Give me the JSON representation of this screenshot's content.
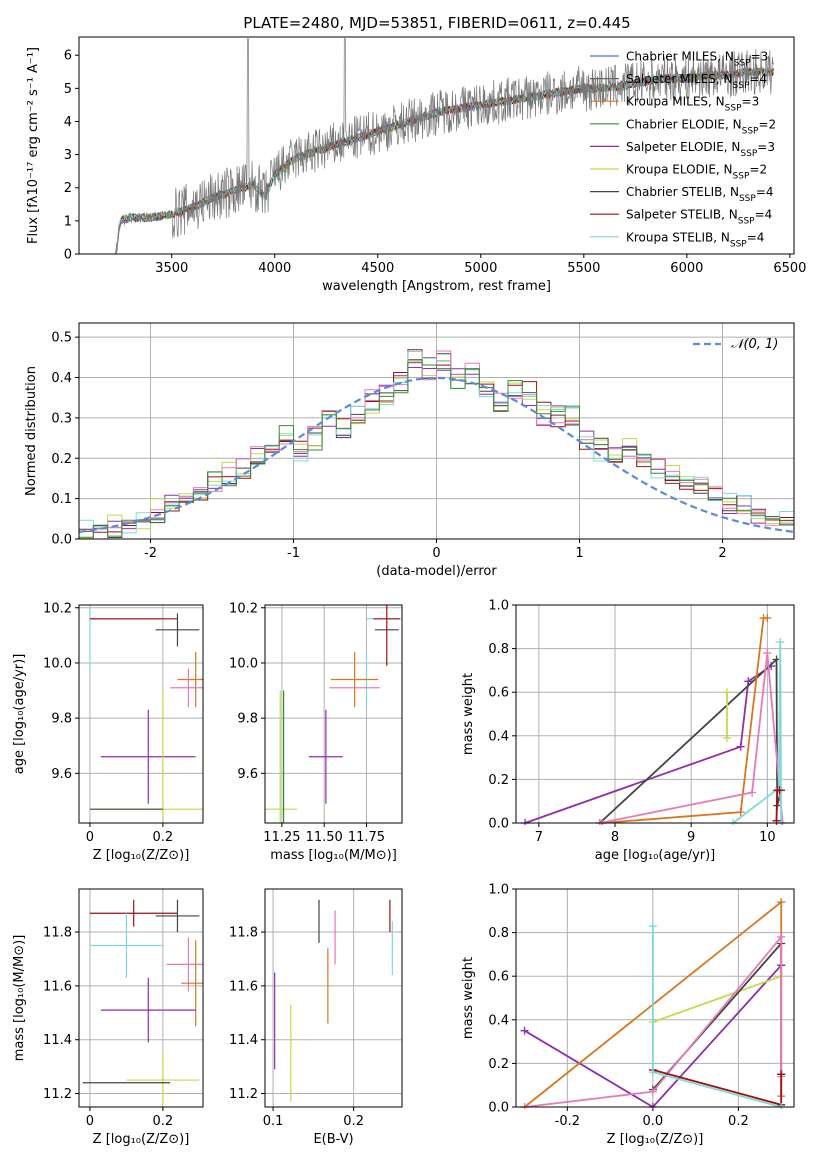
{
  "figure": {
    "title": "PLATE=2480, MJD=53851, FIBERID=0611, z=0.445"
  },
  "colors": {
    "chab_miles": "#4b6fd8",
    "salp_miles": "#666666",
    "krou_miles": "#d87722",
    "chab_elodie": "#3a8a3a",
    "salp_elodie": "#8e2fae",
    "krou_elodie": "#bfdc4a",
    "chab_stelib": "#444444",
    "salp_stelib": "#a01010",
    "krou_stelib": "#7fd8d8",
    "pink": "#e67bb8",
    "gauss": "#5b8bd8",
    "grid": "#b0b0b0"
  },
  "chart_data": [
    {
      "id": "spectrum",
      "type": "line",
      "title": "PLATE=2480, MJD=53851, FIBERID=0611, z=0.445",
      "xlabel": "wavelength [Angstrom, rest frame]",
      "ylabel": "Flux [fλ10⁻¹⁷ erg cm⁻² s⁻¹ A⁻¹]",
      "xlim": [
        3050,
        6520
      ],
      "ylim": [
        0,
        6.55
      ],
      "xticks": [
        3500,
        4000,
        4500,
        5000,
        5500,
        6000,
        6500
      ],
      "yticks": [
        0,
        1,
        2,
        3,
        4,
        5,
        6
      ],
      "grid": false,
      "legend_position": "top-right",
      "legend": [
        {
          "label": "Chabrier MILES, N",
          "sub": "SSP",
          "suffix": "=3",
          "color_key": "chab_miles"
        },
        {
          "label": "Salpeter MILES, N",
          "sub": "SSP",
          "suffix": "=4",
          "color_key": "salp_miles"
        },
        {
          "label": "Kroupa MILES, N",
          "sub": "SSP",
          "suffix": "=3",
          "color_key": "krou_miles"
        },
        {
          "label": "Chabrier ELODIE, N",
          "sub": "SSP",
          "suffix": "=2",
          "color_key": "chab_elodie"
        },
        {
          "label": "Salpeter ELODIE, N",
          "sub": "SSP",
          "suffix": "=3",
          "color_key": "salp_elodie"
        },
        {
          "label": "Kroupa ELODIE, N",
          "sub": "SSP",
          "suffix": "=2",
          "color_key": "krou_elodie"
        },
        {
          "label": "Chabrier STELIB, N",
          "sub": "SSP",
          "suffix": "=4",
          "color_key": "chab_stelib"
        },
        {
          "label": "Salpeter STELIB, N",
          "sub": "SSP",
          "suffix": "=4",
          "color_key": "salp_stelib"
        },
        {
          "label": "Kroupa STELIB, N",
          "sub": "SSP",
          "suffix": "=4",
          "color_key": "krou_stelib"
        }
      ],
      "continuum": {
        "x": [
          3150,
          3230,
          3250,
          3300,
          3400,
          3500,
          3600,
          3700,
          3800,
          3900,
          3950,
          4000,
          4100,
          4200,
          4300,
          4400,
          4500,
          4600,
          4700,
          4800,
          4900,
          5000,
          5100,
          5200,
          5300,
          5400,
          5500,
          5600,
          5700,
          5800,
          5900,
          6000,
          6100,
          6200,
          6300,
          6400
        ],
        "y": [
          0,
          0,
          1.0,
          1.1,
          1.1,
          1.2,
          1.4,
          1.7,
          1.9,
          2.1,
          1.7,
          2.4,
          2.9,
          3.1,
          3.3,
          3.5,
          3.7,
          3.9,
          4.1,
          4.3,
          4.4,
          4.5,
          4.6,
          4.7,
          4.8,
          4.9,
          5.0,
          5.0,
          5.1,
          5.2,
          5.3,
          5.3,
          5.4,
          5.4,
          5.5,
          5.5
        ]
      }
    },
    {
      "id": "residuals",
      "type": "line",
      "xlabel": "(data-model)/error",
      "ylabel": "Normed distribution",
      "xlim": [
        -2.5,
        2.5
      ],
      "ylim": [
        0,
        0.535
      ],
      "xticks": [
        -2,
        -1,
        0,
        1,
        2
      ],
      "yticks": [
        0.0,
        0.1,
        0.2,
        0.3,
        0.4,
        0.5
      ],
      "grid": true,
      "legend_position": "top-right",
      "legend": [
        {
          "label": "𝒩(0, 1)",
          "color_key": "gauss"
        }
      ],
      "bin_edges_start": -2.5,
      "bin_width": 0.1,
      "histogram_mean": [
        0.02,
        0.025,
        0.03,
        0.04,
        0.05,
        0.07,
        0.08,
        0.1,
        0.12,
        0.14,
        0.16,
        0.18,
        0.2,
        0.22,
        0.26,
        0.22,
        0.25,
        0.29,
        0.28,
        0.31,
        0.34,
        0.36,
        0.39,
        0.45,
        0.42,
        0.44,
        0.4,
        0.41,
        0.36,
        0.34,
        0.37,
        0.36,
        0.31,
        0.3,
        0.3,
        0.25,
        0.22,
        0.21,
        0.22,
        0.2,
        0.18,
        0.16,
        0.14,
        0.13,
        0.11,
        0.09,
        0.08,
        0.06,
        0.05,
        0.045
      ],
      "gaussian": {
        "mu": 0,
        "sigma": 1
      }
    },
    {
      "id": "age-vs-Z",
      "type": "scatter",
      "xlabel": "Z [log₁₀(Z/Z⊙)]",
      "ylabel": "age  [log₁₀(age/yr)]",
      "xlim": [
        -0.03,
        0.31
      ],
      "ylim": [
        9.42,
        10.21
      ],
      "xticks": [
        0.0,
        0.2
      ],
      "yticks": [
        9.6,
        9.8,
        10.0,
        10.2
      ],
      "grid": true,
      "points": [
        {
          "x": 0.0,
          "y": 10.16,
          "xerr": 0.0,
          "yerr": 0.18,
          "color_key": "krou_stelib"
        },
        {
          "x": 0.1,
          "y": 10.16,
          "xerr": 0.1,
          "yerr": 0.0,
          "color_key": "pink"
        },
        {
          "x": 0.12,
          "y": 10.16,
          "xerr": 0.12,
          "yerr": 0.0,
          "color_key": "salp_stelib"
        },
        {
          "x": 0.24,
          "y": 10.12,
          "xerr": 0.06,
          "yerr": 0.06,
          "color_key": "chab_stelib"
        },
        {
          "x": 0.29,
          "y": 9.94,
          "xerr": 0.05,
          "yerr": 0.1,
          "color_key": "krou_miles"
        },
        {
          "x": 0.27,
          "y": 9.91,
          "xerr": 0.05,
          "yerr": 0.07,
          "color_key": "pink"
        },
        {
          "x": 0.16,
          "y": 9.66,
          "xerr": 0.13,
          "yerr": 0.17,
          "color_key": "salp_elodie"
        },
        {
          "x": 0.2,
          "y": 9.47,
          "xerr": 0.2,
          "yerr": 0.43,
          "color_key": "krou_elodie"
        },
        {
          "x": 0.1,
          "y": 9.47,
          "xerr": 0.1,
          "yerr": 0.0,
          "color_key": "chab_stelib"
        }
      ]
    },
    {
      "id": "age-vs-mass",
      "type": "scatter",
      "xlabel": "mass [log₁₀(M/M⊙)]",
      "ylabel": "",
      "xlim": [
        11.15,
        11.96
      ],
      "ylim": [
        9.42,
        10.21
      ],
      "xticks": [
        11.25,
        11.5,
        11.75
      ],
      "tick_labels_x": [
        "11.25",
        "11.50",
        "11.75"
      ],
      "yticks": [
        9.6,
        9.8,
        10.0,
        10.2
      ],
      "grid": true,
      "points": [
        {
          "x": 11.85,
          "y": 10.16,
          "xerr": 0.1,
          "yerr": 0.0,
          "color_key": "krou_stelib"
        },
        {
          "x": 11.87,
          "y": 10.16,
          "xerr": 0.08,
          "yerr": 0.17,
          "color_key": "salp_stelib"
        },
        {
          "x": 11.87,
          "y": 10.12,
          "xerr": 0.07,
          "yerr": 0.0,
          "color_key": "chab_stelib"
        },
        {
          "x": 11.75,
          "y": 9.94,
          "xerr": 0.0,
          "yerr": 0.1,
          "color_key": "krou_stelib"
        },
        {
          "x": 11.68,
          "y": 9.94,
          "xerr": 0.14,
          "yerr": 0.1,
          "color_key": "krou_miles"
        },
        {
          "x": 11.68,
          "y": 9.91,
          "xerr": 0.15,
          "yerr": 0.0,
          "color_key": "pink"
        },
        {
          "x": 11.51,
          "y": 9.66,
          "xerr": 0.1,
          "yerr": 0.17,
          "color_key": "salp_elodie"
        },
        {
          "x": 11.24,
          "y": 9.47,
          "xerr": 0.1,
          "yerr": 0.43,
          "color_key": "krou_elodie"
        },
        {
          "x": 11.26,
          "y": 9.47,
          "xerr": 0.0,
          "yerr": 0.43,
          "color_key": "chab_elodie"
        }
      ]
    },
    {
      "id": "massweight-vs-age",
      "type": "line",
      "xlabel": "age  [log₁₀(age/yr)]",
      "ylabel": "mass weight",
      "xlim": [
        6.7,
        10.35
      ],
      "ylim": [
        0,
        1.0
      ],
      "xticks": [
        7,
        8,
        9,
        10
      ],
      "yticks": [
        0.0,
        0.2,
        0.4,
        0.6,
        0.8,
        1.0
      ],
      "grid": true,
      "series": [
        {
          "color_key": "salp_elodie",
          "x": [
            6.82,
            9.65,
            9.75,
            10.05
          ],
          "y": [
            0.0,
            0.35,
            0.65,
            0.72
          ]
        },
        {
          "color_key": "chab_stelib",
          "x": [
            7.8,
            10.12,
            10.13,
            10.18
          ],
          "y": [
            0.0,
            0.75,
            0.08,
            0.15
          ]
        },
        {
          "color_key": "krou_miles",
          "x": [
            7.83,
            9.65,
            9.95,
            10.0
          ],
          "y": [
            0.0,
            0.05,
            0.94,
            0.94
          ]
        },
        {
          "color_key": "pink",
          "x": [
            7.8,
            9.8,
            10.0,
            10.2
          ],
          "y": [
            0.0,
            0.14,
            0.78,
            0.0
          ]
        },
        {
          "color_key": "krou_elodie",
          "x": [
            9.47,
            9.47
          ],
          "y": [
            0.39,
            0.6
          ]
        },
        {
          "color_key": "krou_stelib",
          "x": [
            9.55,
            10.15,
            10.17,
            10.18
          ],
          "y": [
            0.0,
            0.16,
            0.83,
            0.0
          ]
        },
        {
          "color_key": "salp_stelib",
          "x": [
            10.12,
            10.13,
            10.16
          ],
          "y": [
            0.01,
            0.15,
            0.15
          ]
        }
      ]
    },
    {
      "id": "mass-vs-Z",
      "type": "scatter",
      "xlabel": "Z [log₁₀(Z/Z⊙)]",
      "ylabel": "mass [log₁₀(M/M⊙)]",
      "xlim": [
        -0.03,
        0.31
      ],
      "ylim": [
        11.15,
        11.96
      ],
      "xticks": [
        0.0,
        0.2
      ],
      "yticks": [
        11.2,
        11.4,
        11.6,
        11.8
      ],
      "grid": true,
      "points": [
        {
          "x": 0.12,
          "y": 11.87,
          "xerr": 0.12,
          "yerr": 0.05,
          "color_key": "salp_stelib"
        },
        {
          "x": 0.24,
          "y": 11.86,
          "xerr": 0.06,
          "yerr": 0.06,
          "color_key": "chab_stelib"
        },
        {
          "x": 0.1,
          "y": 11.75,
          "xerr": 0.1,
          "yerr": 0.12,
          "color_key": "krou_stelib"
        },
        {
          "x": 0.27,
          "y": 11.68,
          "xerr": 0.06,
          "yerr": 0.1,
          "color_key": "pink"
        },
        {
          "x": 0.29,
          "y": 11.61,
          "xerr": 0.04,
          "yerr": 0.16,
          "color_key": "krou_miles"
        },
        {
          "x": 0.16,
          "y": 11.51,
          "xerr": 0.13,
          "yerr": 0.12,
          "color_key": "salp_elodie"
        },
        {
          "x": 0.2,
          "y": 11.25,
          "xerr": 0.1,
          "yerr": 0.1,
          "color_key": "krou_elodie"
        },
        {
          "x": 0.1,
          "y": 11.24,
          "xerr": 0.12,
          "yerr": 0.0,
          "color_key": "chab_stelib"
        }
      ]
    },
    {
      "id": "mass-vs-ebv",
      "type": "scatter",
      "xlabel": "E(B-V)",
      "ylabel": "",
      "xlim": [
        0.09,
        0.26
      ],
      "ylim": [
        11.15,
        11.96
      ],
      "xticks": [
        0.1,
        0.2
      ],
      "yticks": [
        11.2,
        11.4,
        11.6,
        11.8
      ],
      "grid": true,
      "points": [
        {
          "x": 0.102,
          "y": 11.47,
          "xerr": 0,
          "yerr": 0.18,
          "color_key": "salp_elodie"
        },
        {
          "x": 0.122,
          "y": 11.35,
          "xerr": 0,
          "yerr": 0.18,
          "color_key": "krou_elodie"
        },
        {
          "x": 0.157,
          "y": 11.84,
          "xerr": 0,
          "yerr": 0.08,
          "color_key": "chab_stelib"
        },
        {
          "x": 0.168,
          "y": 11.6,
          "xerr": 0,
          "yerr": 0.14,
          "color_key": "krou_miles"
        },
        {
          "x": 0.177,
          "y": 11.78,
          "xerr": 0,
          "yerr": 0.1,
          "color_key": "pink"
        },
        {
          "x": 0.245,
          "y": 11.86,
          "xerr": 0,
          "yerr": 0.06,
          "color_key": "salp_stelib"
        },
        {
          "x": 0.248,
          "y": 11.74,
          "xerr": 0,
          "yerr": 0.1,
          "color_key": "krou_stelib"
        }
      ]
    },
    {
      "id": "massweight-vs-Z",
      "type": "line",
      "xlabel": "Z [log₁₀(Z/Z⊙)]",
      "ylabel": "mass weight",
      "xlim": [
        -0.32,
        0.33
      ],
      "ylim": [
        0,
        1.0
      ],
      "xticks": [
        -0.2,
        0.0,
        0.2
      ],
      "yticks": [
        0.0,
        0.2,
        0.4,
        0.6,
        0.8,
        1.0
      ],
      "grid": true,
      "series": [
        {
          "color_key": "salp_elodie",
          "x": [
            -0.3,
            0.0,
            0.3,
            0.3
          ],
          "y": [
            0.35,
            0.0,
            0.65,
            0.65
          ]
        },
        {
          "color_key": "krou_miles",
          "x": [
            -0.3,
            0.3,
            0.3
          ],
          "y": [
            0.0,
            0.94,
            0.05
          ]
        },
        {
          "color_key": "krou_elodie",
          "x": [
            0.0,
            0.3
          ],
          "y": [
            0.39,
            0.6
          ]
        },
        {
          "color_key": "chab_stelib",
          "x": [
            0.0,
            0.3,
            0.3
          ],
          "y": [
            0.08,
            0.75,
            0.15
          ]
        },
        {
          "color_key": "pink",
          "x": [
            -0.3,
            0.0,
            0.3,
            0.3
          ],
          "y": [
            0.0,
            0.07,
            0.78,
            0.14
          ]
        },
        {
          "color_key": "salp_stelib",
          "x": [
            0.0,
            0.3,
            0.3
          ],
          "y": [
            0.17,
            0.01,
            0.15
          ]
        },
        {
          "color_key": "krou_stelib",
          "x": [
            0.0,
            0.0,
            0.3
          ],
          "y": [
            0.83,
            0.16,
            0.0
          ]
        }
      ]
    }
  ]
}
